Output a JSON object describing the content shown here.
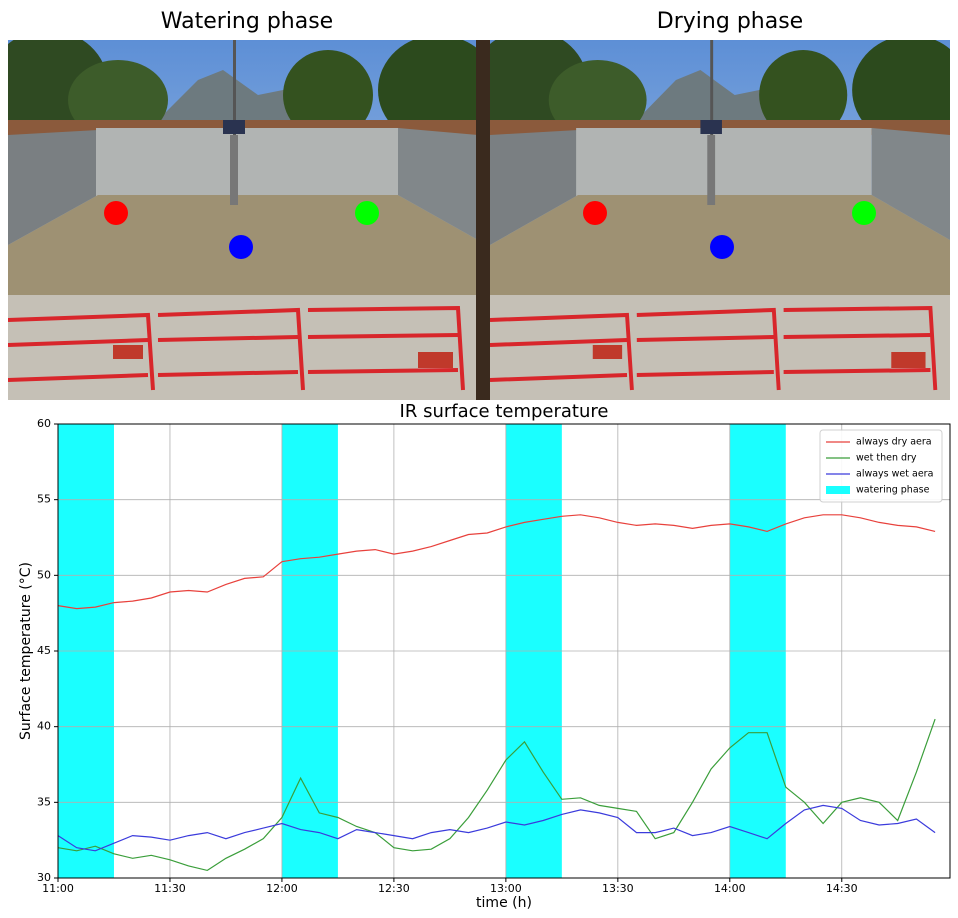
{
  "photos": [
    {
      "title": "Watering phase"
    },
    {
      "title": "Drying phase"
    }
  ],
  "chart_data": {
    "type": "line",
    "title": "IR surface temperature",
    "x_label": "time (h)",
    "y_label": "Surface temperature (°C)",
    "x": [
      660,
      665,
      670,
      675,
      680,
      685,
      690,
      695,
      700,
      705,
      710,
      715,
      720,
      725,
      730,
      735,
      740,
      745,
      750,
      755,
      760,
      765,
      770,
      775,
      780,
      785,
      790,
      795,
      800,
      805,
      810,
      815,
      820,
      825,
      830,
      835,
      840,
      845,
      850,
      855,
      860,
      865,
      870,
      875,
      880,
      885,
      890,
      895
    ],
    "series": [
      {
        "name": "always dry aera",
        "color": "#e8413c",
        "values": [
          48.0,
          47.8,
          47.9,
          48.2,
          48.3,
          48.5,
          48.9,
          49.0,
          48.9,
          49.4,
          49.8,
          49.9,
          50.9,
          51.1,
          51.2,
          51.4,
          51.6,
          51.7,
          51.4,
          51.6,
          51.9,
          52.3,
          52.7,
          52.8,
          53.2,
          53.5,
          53.7,
          53.9,
          54.0,
          53.8,
          53.5,
          53.3,
          53.4,
          53.3,
          53.1,
          53.3,
          53.4,
          53.2,
          52.9,
          53.4,
          53.8,
          54.0,
          54.0,
          53.8,
          53.5,
          53.3,
          53.2,
          52.9
        ]
      },
      {
        "name": "wet then dry",
        "color": "#3a9e3a",
        "values": [
          32.0,
          31.8,
          32.1,
          31.6,
          31.3,
          31.5,
          31.2,
          30.8,
          30.5,
          31.3,
          31.9,
          32.6,
          34.0,
          36.6,
          34.3,
          34.0,
          33.4,
          33.0,
          32.0,
          31.8,
          31.9,
          32.6,
          34.0,
          35.8,
          37.8,
          39.0,
          37.0,
          35.2,
          35.3,
          34.8,
          34.6,
          34.4,
          32.6,
          33.0,
          35.0,
          37.2,
          38.6,
          39.6,
          39.6,
          36.0,
          35.0,
          33.6,
          35.0,
          35.3,
          35.0,
          33.8,
          37.0,
          40.5
        ]
      },
      {
        "name": "always wet aera",
        "color": "#3b3bdc",
        "values": [
          32.8,
          32.0,
          31.8,
          32.3,
          32.8,
          32.7,
          32.5,
          32.8,
          33.0,
          32.6,
          33.0,
          33.3,
          33.6,
          33.2,
          33.0,
          32.6,
          33.2,
          33.0,
          32.8,
          32.6,
          33.0,
          33.2,
          33.0,
          33.3,
          33.7,
          33.5,
          33.8,
          34.2,
          34.5,
          34.3,
          34.0,
          33.0,
          33.0,
          33.3,
          32.8,
          33.0,
          33.4,
          33.0,
          32.6,
          33.6,
          34.5,
          34.8,
          34.6,
          33.8,
          33.5,
          33.6,
          33.9,
          33.0
        ]
      }
    ],
    "watering": {
      "name": "watering phase",
      "color": "#1affff",
      "spans": [
        [
          660,
          675
        ],
        [
          720,
          735
        ],
        [
          780,
          795
        ],
        [
          840,
          855
        ]
      ]
    },
    "xlim": [
      660,
      899
    ],
    "xticks": [
      {
        "value": 660,
        "label": "11:00"
      },
      {
        "value": 690,
        "label": "11:30"
      },
      {
        "value": 720,
        "label": "12:00"
      },
      {
        "value": 750,
        "label": "12:30"
      },
      {
        "value": 780,
        "label": "13:00"
      },
      {
        "value": 810,
        "label": "13:30"
      },
      {
        "value": 840,
        "label": "14:00"
      },
      {
        "value": 870,
        "label": "14:30"
      }
    ],
    "ylim": [
      30,
      60
    ],
    "yticks": [
      30,
      35,
      40,
      45,
      50,
      55,
      60
    ],
    "grid": true,
    "legend": "upper right"
  }
}
